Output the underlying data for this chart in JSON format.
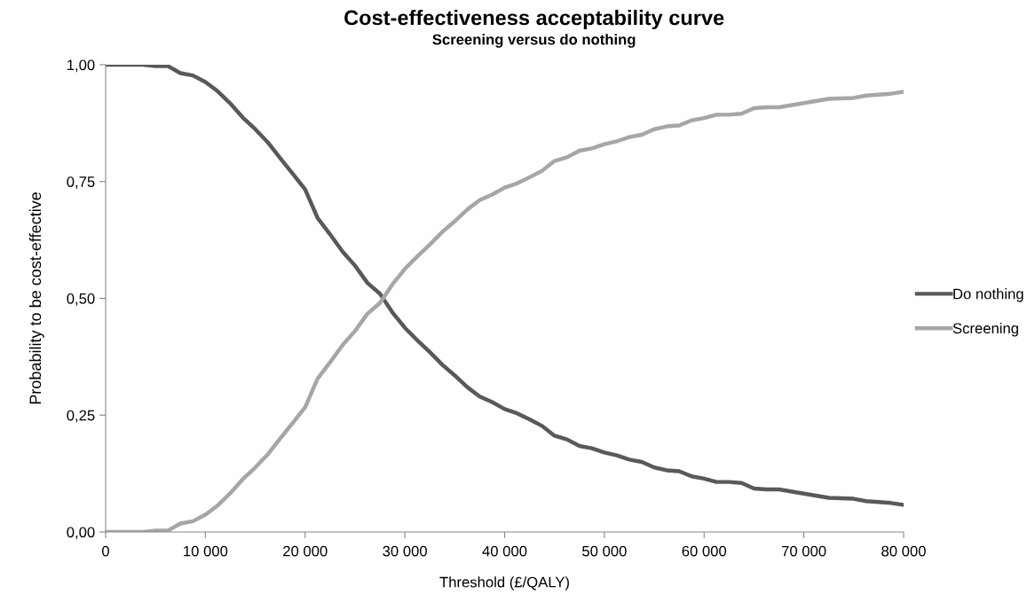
{
  "chart_data": {
    "type": "line",
    "title": "Cost-effectiveness acceptability curve",
    "subtitle": "Screening versus do nothing",
    "xlabel": "Threshold (£/QALY)",
    "ylabel": "Probability to be cost-effective",
    "x": [
      0,
      2500,
      3750,
      5000,
      6250,
      7500,
      8750,
      10000,
      11250,
      12500,
      13750,
      15000,
      16250,
      17500,
      18750,
      20000,
      21250,
      22500,
      23750,
      25000,
      26250,
      27500,
      28750,
      30000,
      31250,
      32500,
      33750,
      35000,
      36250,
      37500,
      38750,
      40000,
      41250,
      42500,
      43750,
      45000,
      46250,
      47500,
      48750,
      50000,
      51250,
      52500,
      53750,
      55000,
      56250,
      57500,
      58750,
      60000,
      61250,
      62500,
      63750,
      65000,
      66250,
      67500,
      70000,
      72500,
      75000,
      76250,
      78750,
      80000
    ],
    "series": [
      {
        "name": "Do nothing",
        "color": "#595959",
        "values": [
          1.0,
          1.0,
          1.0,
          0.997,
          0.997,
          0.982,
          0.977,
          0.963,
          0.943,
          0.917,
          0.887,
          0.862,
          0.834,
          0.8,
          0.767,
          0.733,
          0.672,
          0.637,
          0.6,
          0.57,
          0.533,
          0.51,
          0.47,
          0.437,
          0.41,
          0.385,
          0.358,
          0.335,
          0.31,
          0.29,
          0.278,
          0.263,
          0.254,
          0.241,
          0.227,
          0.206,
          0.198,
          0.184,
          0.179,
          0.17,
          0.164,
          0.155,
          0.15,
          0.138,
          0.132,
          0.13,
          0.119,
          0.114,
          0.107,
          0.107,
          0.105,
          0.093,
          0.091,
          0.091,
          0.082,
          0.073,
          0.071,
          0.066,
          0.062,
          0.058
        ]
      },
      {
        "name": "Screening",
        "color": "#a6a6a6",
        "values": [
          0.0,
          0.0,
          0.0,
          0.003,
          0.003,
          0.018,
          0.023,
          0.037,
          0.057,
          0.083,
          0.113,
          0.138,
          0.166,
          0.2,
          0.233,
          0.267,
          0.328,
          0.363,
          0.4,
          0.43,
          0.467,
          0.49,
          0.53,
          0.563,
          0.59,
          0.615,
          0.642,
          0.665,
          0.69,
          0.71,
          0.722,
          0.737,
          0.746,
          0.759,
          0.773,
          0.794,
          0.802,
          0.816,
          0.821,
          0.83,
          0.836,
          0.845,
          0.85,
          0.862,
          0.868,
          0.87,
          0.881,
          0.886,
          0.893,
          0.893,
          0.895,
          0.907,
          0.909,
          0.909,
          0.918,
          0.927,
          0.929,
          0.934,
          0.938,
          0.942
        ]
      }
    ],
    "xlim": [
      0,
      80000
    ],
    "ylim": [
      0,
      1
    ],
    "xticks": [
      0,
      {
        "value": 10000,
        "label": "10 000"
      },
      {
        "value": 20000,
        "label": "20 000"
      },
      {
        "value": 30000,
        "label": "30 000"
      },
      {
        "value": 40000,
        "label": "40 000"
      },
      {
        "value": 50000,
        "label": "50 000"
      },
      {
        "value": 60000,
        "label": "60 000"
      },
      {
        "value": 70000,
        "label": "70 000"
      },
      {
        "value": 80000,
        "label": "80 000"
      }
    ],
    "yticks": [
      {
        "value": 0,
        "label": "0,00"
      },
      {
        "value": 0.25,
        "label": "0,25"
      },
      {
        "value": 0.5,
        "label": "0,50"
      },
      {
        "value": 0.75,
        "label": "0,75"
      },
      {
        "value": 1,
        "label": "1,00"
      }
    ],
    "grid": false,
    "legend": "right",
    "marker": "none",
    "line_style": "solid"
  }
}
